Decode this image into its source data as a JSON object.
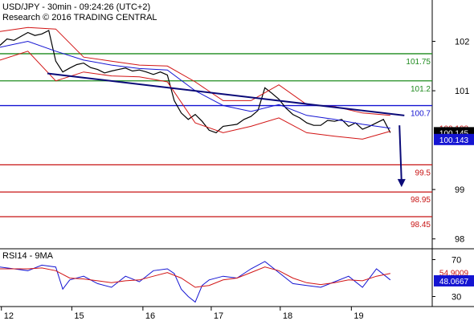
{
  "chart_data": {
    "type": "line",
    "title": "USD/JPY - 30min - 09:24:26 (UTC+2)",
    "subtitle": "Research © 2016 TRADING CENTRAL",
    "price_panel": {
      "ylim": [
        97.8,
        102.35
      ],
      "y_ticks": [
        "102",
        "101",
        "99",
        "98"
      ],
      "y_tick_values": [
        102,
        101,
        99,
        98
      ],
      "last_price": "100.145",
      "price_tag_red": "100.198",
      "price_tag_blue": "100.143",
      "levels": [
        {
          "label": "101.75",
          "value": 101.75,
          "color": "#1f8b1f"
        },
        {
          "label": "101.2",
          "value": 101.2,
          "color": "#1f8b1f"
        },
        {
          "label": "100.7",
          "value": 100.7,
          "color": "#1414d2"
        },
        {
          "label": "99.5",
          "value": 99.5,
          "color": "#c81414"
        },
        {
          "label": "98.95",
          "value": 98.95,
          "color": "#c81414"
        },
        {
          "label": "98.45",
          "value": 98.45,
          "color": "#c81414"
        }
      ],
      "trendline": {
        "x": [
          6.8,
          58
        ],
        "y": [
          101.35,
          100.5
        ],
        "color": "#0a0a78"
      },
      "forecast_arrow": {
        "x": [
          57.3,
          57.6
        ],
        "y": [
          100.3,
          99.05
        ],
        "color": "#0a0a78"
      },
      "series": [
        {
          "color": "#000000",
          "x": [
            0,
            1,
            2,
            3,
            4,
            5,
            6,
            7,
            8,
            9,
            10,
            11,
            12,
            13,
            14,
            15,
            16,
            17,
            18,
            19,
            20,
            21,
            22,
            23,
            24,
            25,
            26,
            27,
            28,
            29,
            30,
            31,
            32,
            33,
            34,
            35,
            36,
            37,
            38,
            39,
            40,
            41,
            42,
            43,
            44,
            45,
            46,
            47,
            48,
            49,
            50,
            51,
            52,
            53,
            54,
            55,
            56
          ],
          "values": [
            101.92,
            102.05,
            102.02,
            102.1,
            102.18,
            102.12,
            102.15,
            102.22,
            101.6,
            101.38,
            101.46,
            101.53,
            101.56,
            101.47,
            101.43,
            101.36,
            101.4,
            101.43,
            101.46,
            101.4,
            101.42,
            101.38,
            101.33,
            101.38,
            101.32,
            100.8,
            100.55,
            100.42,
            100.52,
            100.38,
            100.2,
            100.15,
            100.28,
            100.3,
            100.32,
            100.42,
            100.48,
            100.6,
            101.06,
            100.95,
            100.83,
            100.65,
            100.52,
            100.45,
            100.35,
            100.3,
            100.3,
            100.4,
            100.38,
            100.42,
            100.28,
            100.35,
            100.22,
            100.28,
            100.35,
            100.42,
            100.15
          ]
        },
        {
          "color": "#1414d2",
          "x": [
            0,
            4,
            8,
            12,
            16,
            20,
            24,
            28,
            32,
            36,
            40,
            44,
            48,
            52,
            56
          ],
          "values": [
            101.88,
            102.0,
            101.8,
            101.62,
            101.52,
            101.45,
            101.42,
            101.0,
            100.7,
            100.58,
            100.72,
            100.5,
            100.42,
            100.32,
            100.24
          ]
        },
        {
          "color": "#d21414",
          "x": [
            0,
            4,
            8,
            12,
            16,
            20,
            24,
            28,
            32,
            36,
            40,
            44,
            48,
            52,
            56
          ],
          "values": [
            102.2,
            102.28,
            102.25,
            101.68,
            101.6,
            101.52,
            101.5,
            101.18,
            100.8,
            100.8,
            101.12,
            100.72,
            100.68,
            100.55,
            100.5
          ]
        },
        {
          "color": "#d21414",
          "x": [
            0,
            4,
            8,
            12,
            16,
            20,
            24,
            28,
            32,
            36,
            40,
            44,
            48,
            52,
            56
          ],
          "values": [
            101.62,
            101.8,
            101.2,
            101.38,
            101.3,
            101.28,
            101.18,
            100.35,
            100.15,
            100.28,
            100.45,
            100.15,
            100.08,
            100.02,
            100.18
          ]
        }
      ]
    },
    "rsi_panel": {
      "label": "RSI14 - 9MA",
      "ylim": [
        20,
        80
      ],
      "y_ticks": [
        "70",
        "30"
      ],
      "y_tick_values": [
        70,
        30
      ],
      "value_red": "54.9009",
      "value_blue": "48.0667",
      "series": [
        {
          "name": "RSI14",
          "color": "#1414d2",
          "x": [
            0,
            2,
            4,
            6,
            8,
            9,
            10,
            12,
            14,
            16,
            18,
            20,
            22,
            24,
            25,
            26,
            27,
            28,
            29,
            30,
            32,
            34,
            36,
            38,
            40,
            42,
            44,
            46,
            48,
            50,
            52,
            54,
            56
          ],
          "values": [
            62,
            60,
            58,
            64,
            62,
            38,
            48,
            52,
            44,
            40,
            52,
            46,
            58,
            60,
            55,
            38,
            30,
            24,
            42,
            48,
            52,
            50,
            60,
            68,
            56,
            44,
            42,
            40,
            46,
            52,
            40,
            60,
            48
          ]
        },
        {
          "name": "9MA",
          "color": "#d21414",
          "x": [
            0,
            2,
            4,
            6,
            8,
            10,
            12,
            14,
            16,
            18,
            20,
            22,
            24,
            26,
            28,
            30,
            32,
            34,
            36,
            38,
            40,
            42,
            44,
            46,
            48,
            50,
            52,
            54,
            56
          ],
          "values": [
            60,
            60,
            60,
            61,
            58,
            50,
            49,
            47,
            45,
            47,
            48,
            52,
            56,
            50,
            40,
            42,
            48,
            50,
            56,
            62,
            58,
            50,
            45,
            43,
            45,
            48,
            47,
            52,
            55
          ]
        }
      ]
    },
    "x_axis": {
      "xlim": [
        0,
        62
      ],
      "tick_labels": [
        "12",
        "15",
        "16",
        "17",
        "18",
        "19"
      ],
      "tick_values": [
        0.2,
        10.3,
        20.5,
        30.3,
        40.2,
        50.4
      ]
    }
  }
}
